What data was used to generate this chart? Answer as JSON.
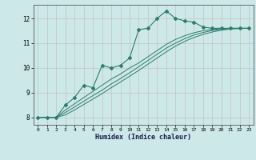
{
  "title": "",
  "xlabel": "Humidex (Indice chaleur)",
  "ylabel": "",
  "background_color": "#cce8e8",
  "grid_color": "#b8d8d8",
  "line_color": "#2d7d6e",
  "xlim": [
    -0.5,
    23.5
  ],
  "ylim": [
    7.7,
    12.55
  ],
  "xticks": [
    0,
    1,
    2,
    3,
    4,
    5,
    6,
    7,
    8,
    9,
    10,
    11,
    12,
    13,
    14,
    15,
    16,
    17,
    18,
    19,
    20,
    21,
    22,
    23
  ],
  "yticks": [
    8,
    9,
    10,
    11,
    12
  ],
  "series": [
    {
      "x": [
        0,
        1,
        2,
        3,
        4,
        5,
        6,
        7,
        8,
        9,
        10,
        11,
        12,
        13,
        14,
        15,
        16,
        17,
        18,
        19,
        20,
        21,
        22,
        23
      ],
      "y": [
        8.0,
        8.0,
        8.0,
        8.5,
        8.8,
        9.3,
        9.2,
        10.1,
        10.0,
        10.1,
        10.4,
        11.55,
        11.6,
        12.0,
        12.3,
        12.0,
        11.9,
        11.85,
        11.65,
        11.6,
        11.6,
        11.6,
        11.6,
        11.6
      ],
      "marker": true
    },
    {
      "x": [
        0,
        1,
        2,
        3,
        4,
        5,
        6,
        7,
        8,
        9,
        10,
        11,
        12,
        13,
        14,
        15,
        16,
        17,
        18,
        19,
        20,
        21,
        22,
        23
      ],
      "y": [
        8.0,
        8.0,
        8.0,
        8.3,
        8.55,
        8.8,
        9.05,
        9.3,
        9.55,
        9.75,
        10.0,
        10.2,
        10.45,
        10.7,
        10.95,
        11.15,
        11.3,
        11.42,
        11.5,
        11.55,
        11.58,
        11.6,
        11.6,
        11.6
      ],
      "marker": false
    },
    {
      "x": [
        0,
        1,
        2,
        3,
        4,
        5,
        6,
        7,
        8,
        9,
        10,
        11,
        12,
        13,
        14,
        15,
        16,
        17,
        18,
        19,
        20,
        21,
        22,
        23
      ],
      "y": [
        8.0,
        8.0,
        8.0,
        8.2,
        8.42,
        8.65,
        8.88,
        9.1,
        9.35,
        9.57,
        9.8,
        10.05,
        10.3,
        10.55,
        10.8,
        11.0,
        11.18,
        11.33,
        11.43,
        11.51,
        11.56,
        11.59,
        11.6,
        11.6
      ],
      "marker": false
    },
    {
      "x": [
        0,
        1,
        2,
        3,
        4,
        5,
        6,
        7,
        8,
        9,
        10,
        11,
        12,
        13,
        14,
        15,
        16,
        17,
        18,
        19,
        20,
        21,
        22,
        23
      ],
      "y": [
        8.0,
        8.0,
        8.0,
        8.1,
        8.3,
        8.52,
        8.74,
        8.96,
        9.2,
        9.43,
        9.66,
        9.9,
        10.15,
        10.4,
        10.65,
        10.88,
        11.07,
        11.23,
        11.35,
        11.45,
        11.52,
        11.57,
        11.59,
        11.6
      ],
      "marker": false
    }
  ]
}
